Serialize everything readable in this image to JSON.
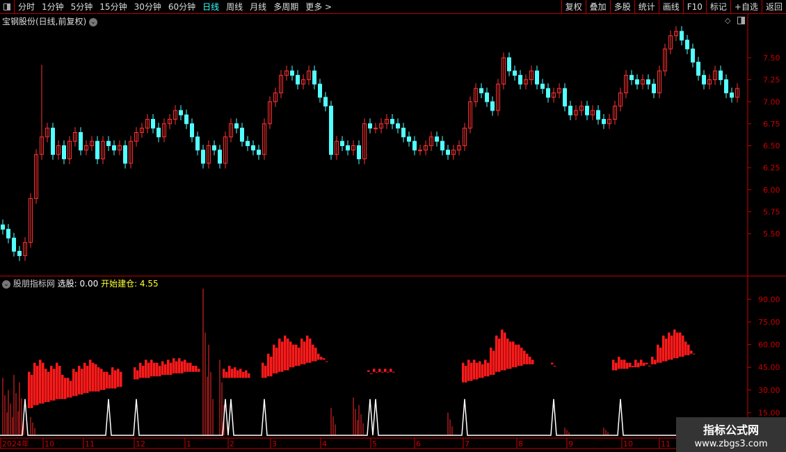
{
  "toolbar": {
    "periods": [
      "分时",
      "1分钟",
      "5分钟",
      "15分钟",
      "30分钟",
      "60分钟",
      "日线",
      "周线",
      "月线",
      "多周期",
      "更多 >"
    ],
    "active": "日线",
    "right": [
      "复权",
      "叠加",
      "多股",
      "统计",
      "画线",
      "F10",
      "标记",
      "+自选",
      "返回"
    ]
  },
  "main_title": "宝钢股份(日线,前复权)",
  "price_axis": [
    "7.50",
    "7.25",
    "7.00",
    "6.75",
    "6.50",
    "6.25",
    "6.00",
    "5.75",
    "5.50"
  ],
  "indicator": {
    "name": "股朋指标网",
    "label1": "选股: 0.00",
    "label2": "开始建仓: 4.55",
    "axis": [
      "90.00",
      "75.00",
      "60.00",
      "45.00",
      "30.00",
      "15.00"
    ]
  },
  "date_axis": [
    "2024年",
    "10",
    "11",
    "12",
    "1",
    "2",
    "3",
    "4",
    "5",
    "6",
    "7",
    "8",
    "9",
    "10",
    "11"
  ],
  "colors": {
    "up": "#ff3232",
    "down": "#54ffff",
    "axis": "#cc0000",
    "signal": "#ffffff"
  },
  "closes": [
    5.55,
    5.45,
    5.3,
    5.25,
    5.4,
    5.9,
    6.4,
    6.6,
    6.7,
    6.4,
    6.5,
    6.35,
    6.55,
    6.65,
    6.45,
    6.5,
    6.55,
    6.35,
    6.55,
    6.5,
    6.45,
    6.5,
    6.3,
    6.55,
    6.65,
    6.7,
    6.8,
    6.7,
    6.6,
    6.75,
    6.8,
    6.9,
    6.85,
    6.75,
    6.6,
    6.45,
    6.3,
    6.5,
    6.45,
    6.3,
    6.6,
    6.75,
    6.7,
    6.55,
    6.5,
    6.45,
    6.4,
    6.75,
    7.0,
    7.1,
    7.3,
    7.35,
    7.3,
    7.2,
    7.25,
    7.35,
    7.2,
    7.05,
    6.95,
    6.4,
    6.55,
    6.5,
    6.45,
    6.5,
    6.35,
    6.75,
    6.7,
    6.7,
    6.75,
    6.8,
    6.75,
    6.7,
    6.6,
    6.55,
    6.45,
    6.45,
    6.5,
    6.6,
    6.55,
    6.45,
    6.4,
    6.45,
    6.5,
    6.7,
    7.0,
    7.15,
    7.1,
    7.0,
    6.9,
    7.2,
    7.5,
    7.35,
    7.3,
    7.2,
    7.25,
    7.35,
    7.2,
    7.15,
    7.05,
    7.1,
    7.15,
    6.95,
    6.85,
    6.9,
    6.95,
    6.85,
    6.9,
    6.8,
    6.75,
    6.8,
    6.95,
    7.1,
    7.3,
    7.25,
    7.2,
    7.25,
    7.2,
    7.1,
    7.35,
    7.6,
    7.75,
    7.8,
    7.7,
    7.6,
    7.45,
    7.3,
    7.2,
    7.25,
    7.35,
    7.25,
    7.1,
    7.05,
    7.15
  ],
  "hist": [
    [
      5,
      [
        [
          42,
          18
        ],
        [
          48,
          20
        ],
        [
          50,
          21
        ],
        [
          44,
          22
        ],
        [
          46,
          23
        ],
        [
          48,
          24
        ],
        [
          40,
          24
        ],
        [
          38,
          25
        ],
        [
          44,
          26
        ],
        [
          46,
          27
        ],
        [
          48,
          28
        ],
        [
          50,
          29
        ],
        [
          47,
          29
        ],
        [
          44,
          30
        ],
        [
          42,
          31
        ],
        [
          45,
          31
        ],
        [
          44,
          32
        ]
      ]
    ],
    [
      24,
      [
        [
          45,
          37
        ],
        [
          48,
          38
        ],
        [
          50,
          38
        ],
        [
          50,
          39
        ],
        [
          48,
          39
        ],
        [
          49,
          40
        ],
        [
          50,
          40
        ],
        [
          51,
          41
        ],
        [
          51,
          41
        ],
        [
          50,
          42
        ],
        [
          48,
          42
        ],
        [
          46,
          42
        ]
      ]
    ],
    [
      40,
      [
        [
          44,
          38
        ],
        [
          46,
          38
        ],
        [
          45,
          38
        ],
        [
          44,
          38
        ],
        [
          43,
          38
        ]
      ]
    ],
    [
      47,
      [
        [
          48,
          38
        ],
        [
          54,
          39
        ],
        [
          60,
          41
        ],
        [
          64,
          42
        ],
        [
          66,
          43
        ],
        [
          62,
          45
        ],
        [
          60,
          46
        ],
        [
          64,
          47
        ],
        [
          66,
          48
        ],
        [
          60,
          49
        ],
        [
          54,
          50
        ],
        [
          51,
          50
        ]
      ]
    ],
    [
      66,
      [
        [
          43,
          42
        ],
        [
          44,
          42
        ],
        [
          44,
          42
        ],
        [
          44,
          42
        ],
        [
          44,
          42
        ]
      ]
    ],
    [
      83,
      [
        [
          48,
          35
        ],
        [
          50,
          36
        ],
        [
          50,
          37
        ],
        [
          49,
          38
        ],
        [
          50,
          39
        ],
        [
          58,
          40
        ],
        [
          66,
          42
        ],
        [
          70,
          43
        ],
        [
          64,
          44
        ],
        [
          62,
          45
        ],
        [
          60,
          46
        ],
        [
          56,
          47
        ],
        [
          52,
          47
        ]
      ]
    ],
    [
      99,
      [
        [
          48,
          47
        ]
      ]
    ],
    [
      110,
      [
        [
          50,
          43
        ],
        [
          52,
          44
        ],
        [
          50,
          44
        ],
        [
          48,
          45
        ],
        [
          50,
          45
        ],
        [
          50,
          46
        ],
        [
          48,
          47
        ],
        [
          52,
          47
        ],
        [
          60,
          48
        ],
        [
          66,
          49
        ],
        [
          68,
          50
        ],
        [
          70,
          51
        ],
        [
          68,
          52
        ],
        [
          62,
          53
        ],
        [
          56,
          54
        ]
      ]
    ]
  ],
  "signals": [
    4,
    19,
    24,
    40,
    41,
    47,
    66,
    67,
    83,
    99,
    111
  ],
  "low_bars": [
    [
      0,
      38
    ],
    [
      1,
      30
    ],
    [
      2,
      40
    ],
    [
      3,
      35
    ],
    [
      5,
      12
    ],
    [
      36,
      97
    ],
    [
      37,
      60
    ],
    [
      39,
      50
    ],
    [
      59,
      18
    ],
    [
      63,
      25
    ],
    [
      64,
      20
    ],
    [
      80,
      15
    ],
    [
      101,
      5
    ],
    [
      108,
      5
    ]
  ]
}
